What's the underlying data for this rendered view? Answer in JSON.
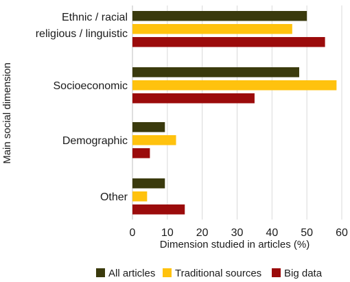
{
  "chart_data": {
    "type": "bar",
    "orientation": "horizontal",
    "categories": [
      [
        "Ethnic / racial",
        "religious / linguistic"
      ],
      [
        "Socioeconomic"
      ],
      [
        "Demographic"
      ],
      [
        "Other"
      ]
    ],
    "series": [
      {
        "name": "All articles",
        "color": "#3a3a0d",
        "values": [
          50,
          47.8,
          9.3,
          9.3
        ]
      },
      {
        "name": "Traditional sources",
        "color": "#ffc20e",
        "values": [
          45.8,
          58.5,
          12.5,
          4.2
        ]
      },
      {
        "name": "Big data",
        "color": "#9b0b0b",
        "values": [
          55.2,
          35,
          5,
          15
        ]
      }
    ],
    "xlabel": "Dimension studied in articles (%)",
    "ylabel": "Main social dimension",
    "xlim": [
      0,
      60
    ],
    "xticks": [
      0,
      10,
      20,
      30,
      40,
      50,
      60
    ],
    "grid": "vertical",
    "legend": "bottom"
  }
}
